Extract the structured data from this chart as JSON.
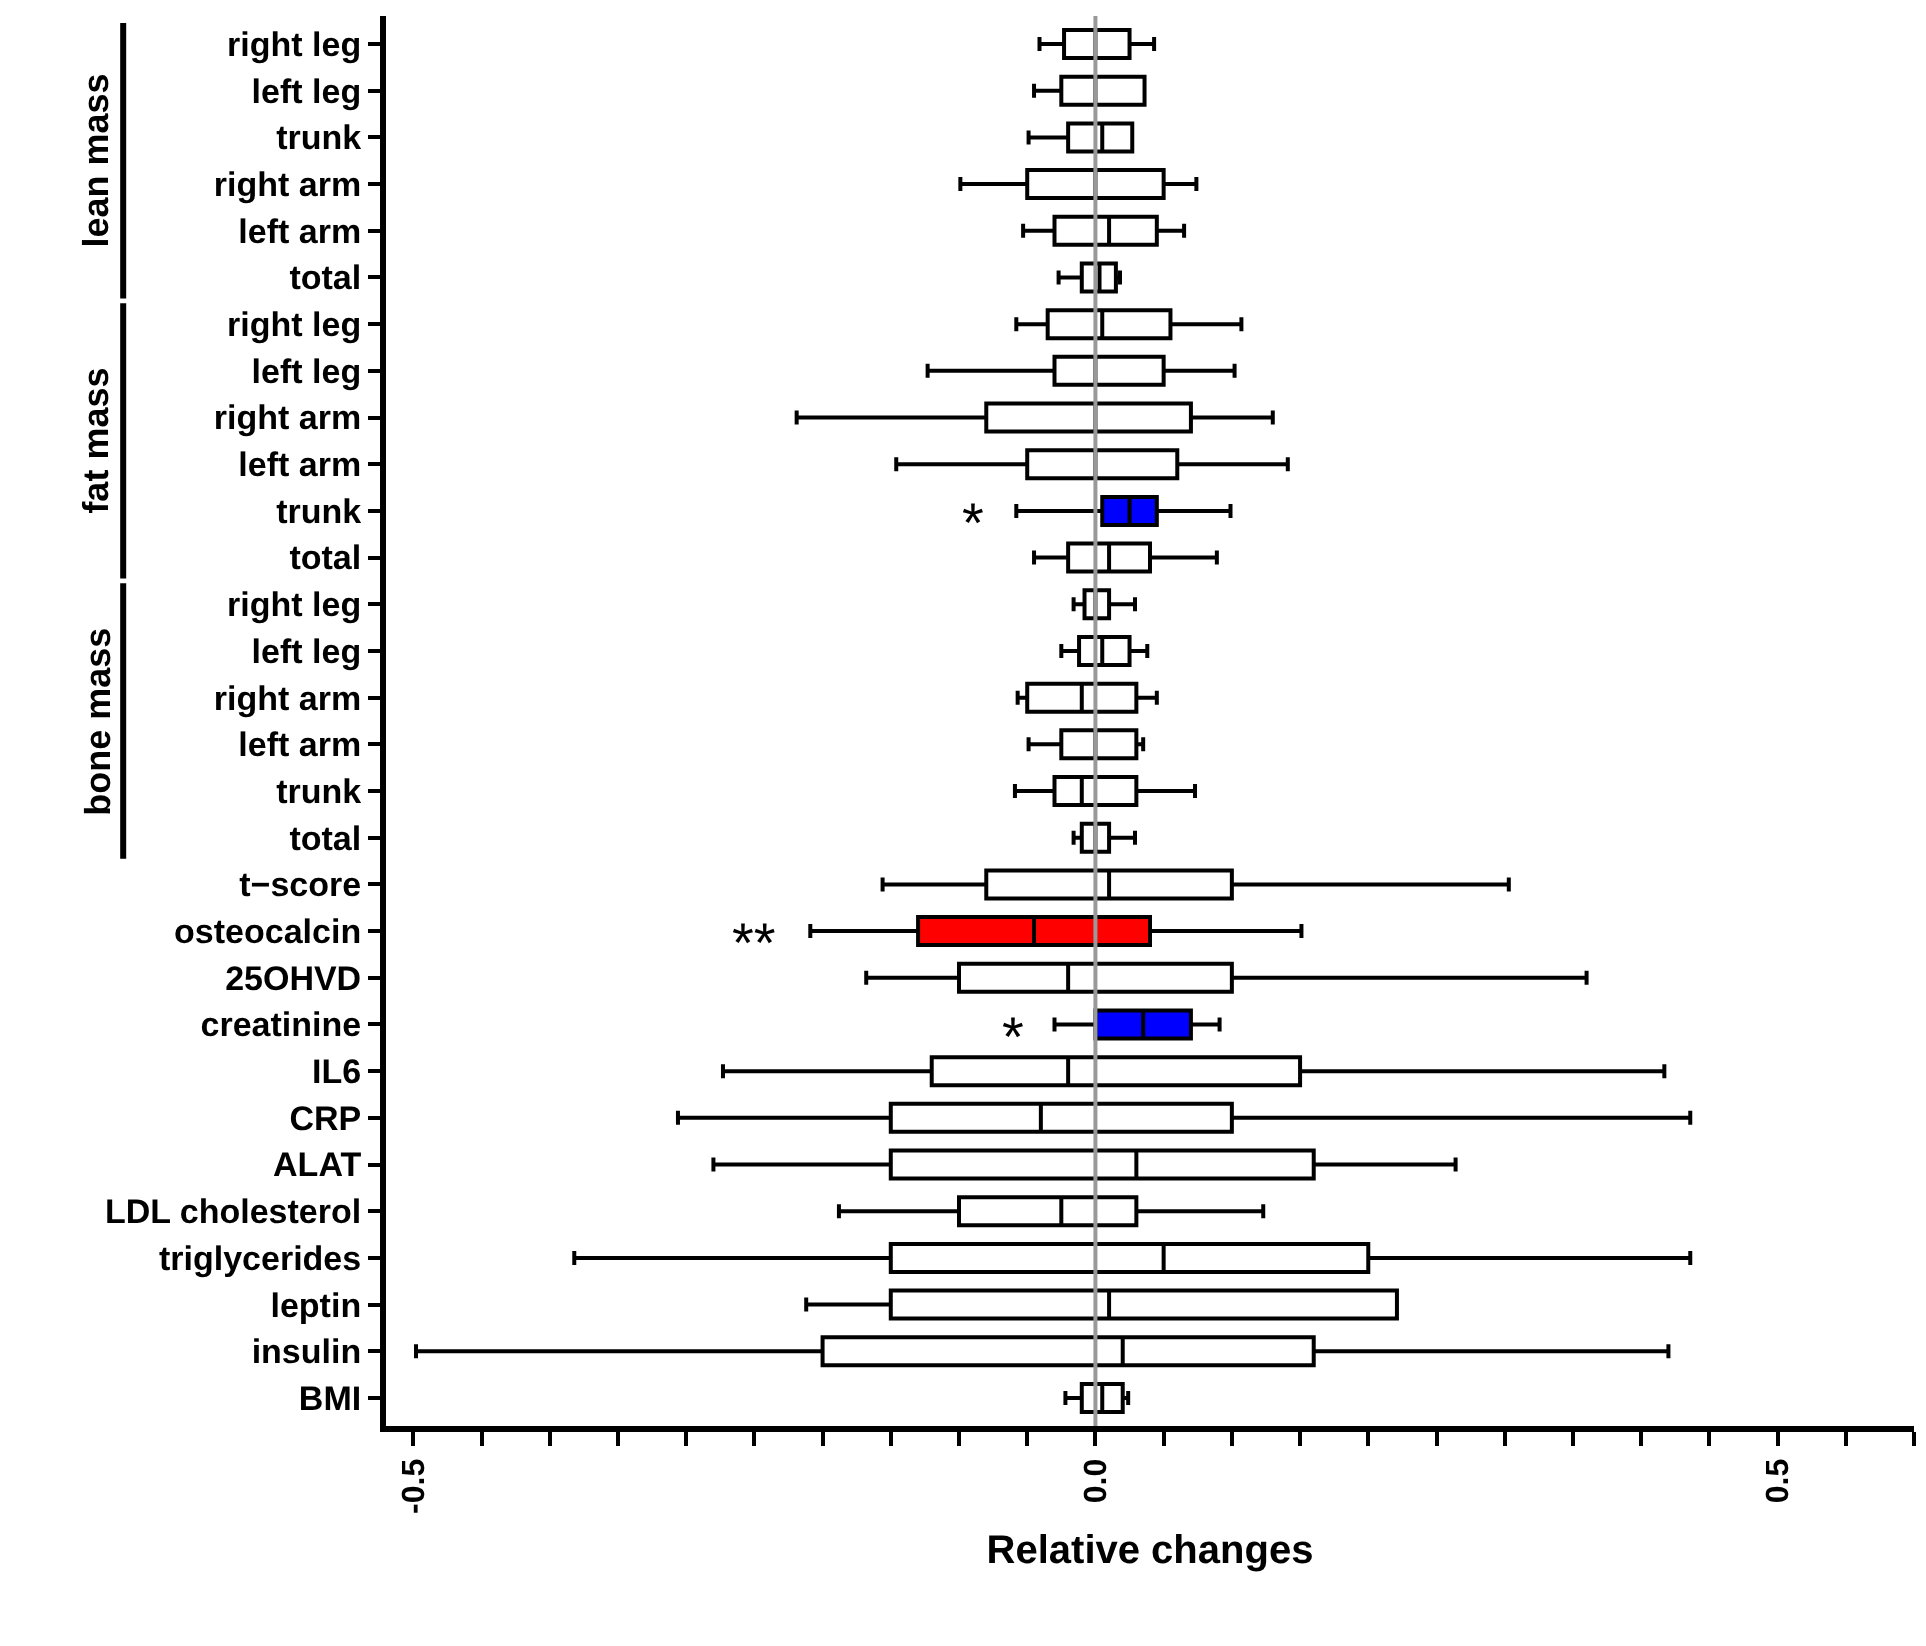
{
  "chart_data": {
    "type": "box",
    "orientation": "horizontal",
    "xlabel": "Relative changes",
    "categories": [
      "right leg",
      "left leg",
      "trunk",
      "right arm",
      "left arm",
      "total",
      "right leg",
      "left leg",
      "right arm",
      "left arm",
      "trunk",
      "total",
      "right leg",
      "left leg",
      "right arm",
      "left arm",
      "trunk",
      "total",
      "t−score",
      "osteocalcin",
      "25OHVD",
      "creatinine",
      "IL6",
      "CRP",
      "ALAT",
      "LDL cholesterol",
      "triglycerides",
      "leptin",
      "insulin",
      "BMI"
    ],
    "boxes": [
      {
        "low": -0.041,
        "q1": -0.023,
        "median": 0,
        "q3": 0.025,
        "high": 0.043
      },
      {
        "low": -0.045,
        "q1": -0.025,
        "median": 0,
        "q3": 0.036,
        "high": 0.036
      },
      {
        "low": -0.049,
        "q1": -0.02,
        "median": 0.005,
        "q3": 0.027,
        "high": 0.027
      },
      {
        "low": -0.099,
        "q1": -0.05,
        "median": 0,
        "q3": 0.05,
        "high": 0.074
      },
      {
        "low": -0.053,
        "q1": -0.03,
        "median": 0.01,
        "q3": 0.045,
        "high": 0.065
      },
      {
        "low": -0.027,
        "q1": -0.01,
        "median": 0.003,
        "q3": 0.015,
        "high": 0.018
      },
      {
        "low": -0.058,
        "q1": -0.035,
        "median": 0.005,
        "q3": 0.055,
        "high": 0.107
      },
      {
        "low": -0.123,
        "q1": -0.03,
        "median": 0,
        "q3": 0.05,
        "high": 0.102
      },
      {
        "low": -0.219,
        "q1": -0.08,
        "median": 0,
        "q3": 0.07,
        "high": 0.13
      },
      {
        "low": -0.146,
        "q1": -0.05,
        "median": 0,
        "q3": 0.06,
        "high": 0.141
      },
      {
        "low": -0.058,
        "q1": 0.005,
        "median": 0.025,
        "q3": 0.045,
        "high": 0.099
      },
      {
        "low": -0.045,
        "q1": -0.02,
        "median": 0.01,
        "q3": 0.04,
        "high": 0.089
      },
      {
        "low": -0.016,
        "q1": -0.008,
        "median": 0,
        "q3": 0.01,
        "high": 0.029
      },
      {
        "low": -0.025,
        "q1": -0.012,
        "median": 0.005,
        "q3": 0.025,
        "high": 0.038
      },
      {
        "low": -0.057,
        "q1": -0.05,
        "median": -0.01,
        "q3": 0.03,
        "high": 0.045
      },
      {
        "low": -0.049,
        "q1": -0.025,
        "median": 0,
        "q3": 0.03,
        "high": 0.035
      },
      {
        "low": -0.059,
        "q1": -0.03,
        "median": -0.01,
        "q3": 0.03,
        "high": 0.073
      },
      {
        "low": -0.016,
        "q1": -0.01,
        "median": 0,
        "q3": 0.01,
        "high": 0.029
      },
      {
        "low": -0.156,
        "q1": -0.08,
        "median": 0.01,
        "q3": 0.1,
        "high": 0.303
      },
      {
        "low": -0.209,
        "q1": -0.13,
        "median": -0.045,
        "q3": 0.04,
        "high": 0.151
      },
      {
        "low": -0.168,
        "q1": -0.1,
        "median": -0.02,
        "q3": 0.1,
        "high": 0.36
      },
      {
        "low": -0.03,
        "q1": 0,
        "median": 0.035,
        "q3": 0.07,
        "high": 0.091
      },
      {
        "low": -0.273,
        "q1": -0.12,
        "median": -0.02,
        "q3": 0.15,
        "high": 0.417
      },
      {
        "low": -0.306,
        "q1": -0.15,
        "median": -0.04,
        "q3": 0.1,
        "high": 0.436
      },
      {
        "low": -0.28,
        "q1": -0.15,
        "median": 0.03,
        "q3": 0.16,
        "high": 0.264
      },
      {
        "low": -0.188,
        "q1": -0.1,
        "median": -0.025,
        "q3": 0.03,
        "high": 0.123
      },
      {
        "low": -0.382,
        "q1": -0.15,
        "median": 0.05,
        "q3": 0.2,
        "high": 0.436
      },
      {
        "low": -0.212,
        "q1": -0.15,
        "median": 0.01,
        "q3": 0.221,
        "high": 0.221
      },
      {
        "low": -0.498,
        "q1": -0.2,
        "median": 0.02,
        "q3": 0.16,
        "high": 0.42
      },
      {
        "low": -0.022,
        "q1": -0.01,
        "median": 0.005,
        "q3": 0.02,
        "high": 0.024
      }
    ],
    "colors": [
      "#ffffff",
      "#ffffff",
      "#ffffff",
      "#ffffff",
      "#ffffff",
      "#ffffff",
      "#ffffff",
      "#ffffff",
      "#ffffff",
      "#ffffff",
      "#0000ff",
      "#ffffff",
      "#ffffff",
      "#ffffff",
      "#ffffff",
      "#ffffff",
      "#ffffff",
      "#ffffff",
      "#ffffff",
      "#ff0000",
      "#ffffff",
      "#0000ff",
      "#ffffff",
      "#ffffff",
      "#ffffff",
      "#ffffff",
      "#ffffff",
      "#ffffff",
      "#ffffff",
      "#ffffff"
    ],
    "xlim": [
      -0.52,
      0.6
    ],
    "xticks": [
      -0.5,
      {
        "value": -0.45,
        "label": null
      },
      {
        "value": -0.4,
        "label": null
      },
      {
        "value": -0.35,
        "label": null
      },
      {
        "value": -0.3,
        "label": null
      },
      {
        "value": -0.25,
        "label": null
      },
      {
        "value": -0.2,
        "label": null
      },
      {
        "value": -0.15,
        "label": null
      },
      {
        "value": -0.1,
        "label": null
      },
      {
        "value": -0.05,
        "label": null
      },
      {
        "value": 0,
        "label": "0.0"
      },
      {
        "value": 0.05,
        "label": null
      },
      {
        "value": 0.1,
        "label": null
      },
      {
        "value": 0.15,
        "label": null
      },
      {
        "value": 0.2,
        "label": null
      },
      {
        "value": 0.25,
        "label": null
      },
      {
        "value": 0.3,
        "label": null
      },
      {
        "value": 0.35,
        "label": null
      },
      {
        "value": 0.4,
        "label": null
      },
      {
        "value": 0.45,
        "label": null
      },
      0.5,
      {
        "value": 0.55,
        "label": null
      },
      {
        "value": 0.6,
        "label": null
      }
    ],
    "ref_lines": [
      {
        "axis": "x",
        "value": 0,
        "color": "#999999"
      }
    ],
    "annotations": [
      "lean mass",
      "fat mass",
      "bone mass",
      "*",
      "**",
      "*"
    ],
    "legend": false
  }
}
